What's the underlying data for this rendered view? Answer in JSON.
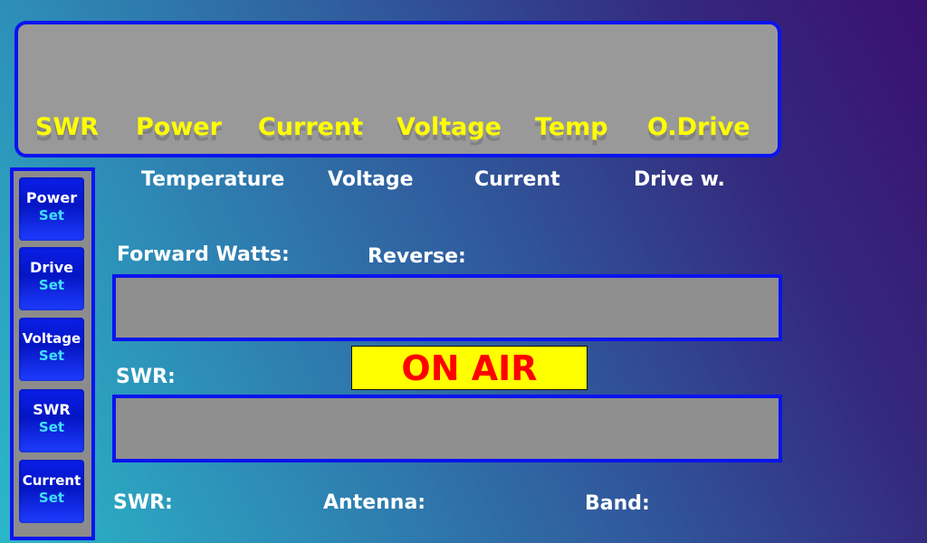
{
  "alarms": [
    {
      "id": "swr",
      "label": "SWR"
    },
    {
      "id": "power",
      "label": "Power"
    },
    {
      "id": "current",
      "label": "Current"
    },
    {
      "id": "voltage",
      "label": "Voltage"
    },
    {
      "id": "temp",
      "label": "Temp"
    },
    {
      "id": "odrive",
      "label": "O.Drive"
    }
  ],
  "readouts": {
    "temperature": "Temperature",
    "voltage": "Voltage",
    "current": "Current",
    "drive": "Drive w."
  },
  "meters": {
    "forward_label": "Forward Watts:",
    "reverse_label": "Reverse:",
    "swr_label": "SWR:"
  },
  "on_air": "ON AIR",
  "footer": {
    "swr_label": "SWR:",
    "antenna_label": "Antenna:",
    "band_label": "Band:"
  },
  "sidebar": {
    "buttons": [
      {
        "id": "power",
        "label": "Power",
        "sub": "Set"
      },
      {
        "id": "drive",
        "label": "Drive",
        "sub": "Set"
      },
      {
        "id": "voltage",
        "label": "Voltage",
        "sub": "Set"
      },
      {
        "id": "swr",
        "label": "SWR",
        "sub": "Set"
      },
      {
        "id": "current",
        "label": "Current",
        "sub": "Set"
      }
    ]
  },
  "colors": {
    "panel_border": "#0a14ee",
    "alarm_text": "#ffff00",
    "on_air_bg": "#ffff00",
    "on_air_text": "#ff0000",
    "button_sub_text": "#40e0ff"
  }
}
